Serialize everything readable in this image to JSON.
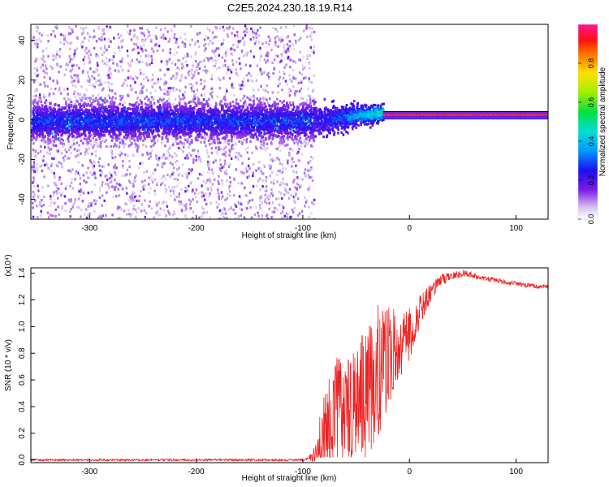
{
  "title": "C2E5.2024.230.18.19.R14",
  "chart_data": [
    {
      "type": "heatmap",
      "name": "spectrogram",
      "xlabel": "Height of straight line (km)",
      "ylabel": "Frequency (Hz)",
      "xlim": [
        -355,
        130
      ],
      "ylim": [
        -50,
        48
      ],
      "xticks": [
        -300,
        -200,
        -100,
        0,
        100
      ],
      "yticks": [
        -40,
        -20,
        0,
        20,
        40
      ],
      "colorbar": {
        "label": "Normalized spectral amplitude",
        "range": [
          0.0,
          1.0
        ],
        "ticks": [
          0.0,
          0.2,
          0.4,
          0.6,
          0.8
        ],
        "tick_labels": [
          "0.0",
          "0.2",
          "0.4",
          "0.6",
          "0.8"
        ]
      },
      "noise_region": {
        "x": [
          -355,
          -90
        ],
        "freq_band": [
          -10,
          10
        ],
        "scatter_freq": [
          -50,
          48
        ],
        "amplitude": [
          0.05,
          0.3
        ]
      },
      "transition_region": {
        "x": [
          -90,
          -25
        ],
        "freq_center_start": 0,
        "freq_center_end": 4,
        "amplitude": [
          0.3,
          0.55
        ]
      },
      "signal_line": {
        "x": [
          -25,
          130
        ],
        "freq": 2.5,
        "amplitude": [
          0.85,
          1.0
        ]
      }
    },
    {
      "type": "line",
      "name": "snr",
      "xlabel": "Height of straight line (km)",
      "ylabel": "SNR (10 * v/v)",
      "yscale_label": "(x10⁴)",
      "xlim": [
        -355,
        130
      ],
      "ylim": [
        -0.02,
        1.44
      ],
      "xticks": [
        -300,
        -200,
        -100,
        0,
        100
      ],
      "yticks": [
        0.0,
        0.2,
        0.4,
        0.6,
        0.8,
        1.0,
        1.2,
        1.4
      ],
      "ytick_labels": [
        "0.0",
        "0.2",
        "0.4",
        "0.6",
        "0.8",
        "1.0",
        "1.2",
        "1.4"
      ],
      "line_color": "#ee2222",
      "series": {
        "name": "SNR",
        "x": [
          -355,
          -300,
          -200,
          -100,
          -95,
          -88,
          -80,
          -70,
          -60,
          -50,
          -40,
          -30,
          -20,
          -10,
          0,
          10,
          20,
          30,
          40,
          50,
          60,
          70,
          80,
          90,
          100,
          110,
          120,
          130
        ],
        "y": [
          0.0,
          0.0,
          0.0,
          0.0,
          0.01,
          0.05,
          0.18,
          0.35,
          0.33,
          0.4,
          0.5,
          0.65,
          0.78,
          0.85,
          0.95,
          1.12,
          1.25,
          1.35,
          1.38,
          1.4,
          1.38,
          1.36,
          1.35,
          1.33,
          1.32,
          1.31,
          1.3,
          1.3
        ],
        "spread": [
          0.008,
          0.008,
          0.008,
          0.008,
          0.01,
          0.08,
          0.35,
          0.45,
          0.4,
          0.45,
          0.5,
          0.55,
          0.4,
          0.25,
          0.2,
          0.12,
          0.07,
          0.04,
          0.03,
          0.03,
          0.025,
          0.02,
          0.02,
          0.02,
          0.02,
          0.02,
          0.015,
          0.015
        ]
      }
    }
  ]
}
